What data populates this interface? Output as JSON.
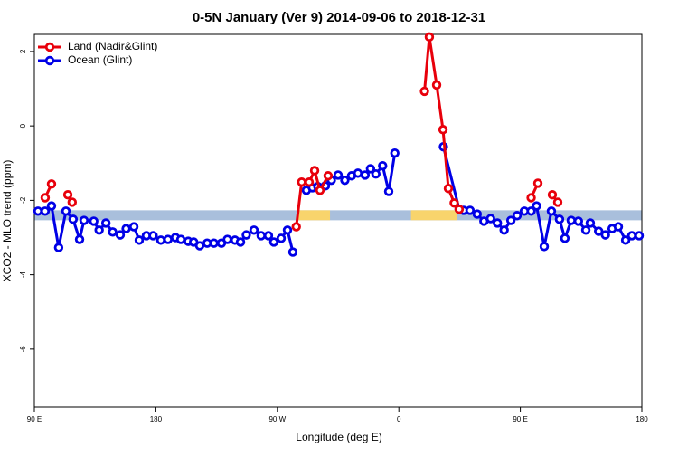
{
  "chart_data": {
    "type": "line",
    "title": "0-5N January (Ver 9)   2014-09-06 to 2018-12-31",
    "x_label": "Longitude (deg E)",
    "y_label": "XCO2 - MLO trend (ppm)",
    "xlim": [
      90,
      540
    ],
    "ylim": [
      -7.56,
      2.46
    ],
    "xticks": [
      {
        "value": 90,
        "label": "90 E"
      },
      180,
      {
        "value": 270,
        "label": "90 W"
      },
      {
        "value": 360,
        "label": "0"
      },
      {
        "value": 450,
        "label": "90 E"
      },
      {
        "value": 540,
        "label": "180"
      }
    ],
    "yticks": [
      -6,
      -4,
      -2,
      0,
      2
    ],
    "legend": "top-left",
    "band": {
      "value": -2.4,
      "color": "#a9bfdc",
      "highlight_color": "#f8d46c",
      "highlights": [
        [
          285.6,
          309
        ],
        [
          369,
          403
        ]
      ]
    },
    "series": [
      {
        "name": "Land (Nadir&Glint)",
        "color": "#e8000b",
        "x": [
          98,
          102.7,
          null,
          114.8,
          118,
          null,
          284,
          288,
          293.6,
          297.6,
          301.6,
          307.6,
          null,
          379,
          382.6,
          388,
          392.7,
          396.7,
          401,
          404.7,
          null,
          458,
          463,
          null,
          473.7,
          477.7
        ],
        "values": [
          -1.93,
          -1.56,
          null,
          -1.85,
          -2.05,
          null,
          -2.71,
          -1.51,
          -1.51,
          -1.2,
          -1.73,
          -1.34,
          null,
          0.93,
          2.39,
          1.1,
          -0.1,
          -1.68,
          -2.07,
          -2.24,
          null,
          -1.93,
          -1.54,
          null,
          -1.85,
          -2.05
        ]
      },
      {
        "name": "Ocean (Glint)",
        "color": "#0000e6",
        "x": [
          92.7,
          98,
          102.7,
          108,
          113.4,
          118.7,
          123.5,
          126.8,
          134,
          138,
          143,
          148,
          153.6,
          158,
          163.7,
          167.7,
          173,
          178,
          183.7,
          189,
          194.5,
          198.5,
          204,
          208,
          212.5,
          218,
          223,
          228.6,
          233,
          238.6,
          242.7,
          247,
          252.7,
          258,
          263.4,
          267.4,
          272.8,
          277.5,
          281.5,
          null,
          291.5,
          296,
          300,
          305.6,
          310,
          315,
          320,
          325,
          329.7,
          335,
          339,
          343,
          348,
          352.5,
          357,
          null,
          393,
          404.7,
          408,
          412.7,
          418,
          423,
          428,
          433,
          438,
          443,
          447.6,
          453,
          458,
          462,
          467.7,
          473,
          479,
          483,
          487.7,
          493,
          498.5,
          501.8,
          508,
          513,
          518,
          522.6,
          528,
          532.6,
          538
        ],
        "values": [
          -2.29,
          -2.29,
          -2.15,
          -3.27,
          -2.29,
          -2.51,
          -3.05,
          -2.54,
          -2.56,
          -2.8,
          -2.61,
          -2.85,
          -2.93,
          -2.76,
          -2.71,
          -3.07,
          -2.95,
          -2.95,
          -3.07,
          -3.05,
          -3.0,
          -3.05,
          -3.1,
          -3.12,
          -3.22,
          -3.15,
          -3.15,
          -3.15,
          -3.05,
          -3.07,
          -3.12,
          -2.93,
          -2.8,
          -2.95,
          -2.95,
          -3.12,
          -3.02,
          -2.8,
          -3.39,
          null,
          -1.73,
          -1.66,
          -1.63,
          -1.61,
          -1.46,
          -1.32,
          -1.46,
          -1.34,
          -1.27,
          -1.32,
          -1.15,
          -1.29,
          -1.07,
          -1.76,
          -0.73,
          null,
          -0.56,
          -2.24,
          -2.27,
          -2.27,
          -2.37,
          -2.56,
          -2.49,
          -2.61,
          -2.8,
          -2.54,
          -2.41,
          -2.29,
          -2.29,
          -2.15,
          -3.24,
          -2.29,
          -2.51,
          -3.02,
          -2.54,
          -2.56,
          -2.8,
          -2.61,
          -2.83,
          -2.93,
          -2.76,
          -2.71,
          -3.07,
          -2.95,
          -2.95
        ]
      }
    ]
  }
}
